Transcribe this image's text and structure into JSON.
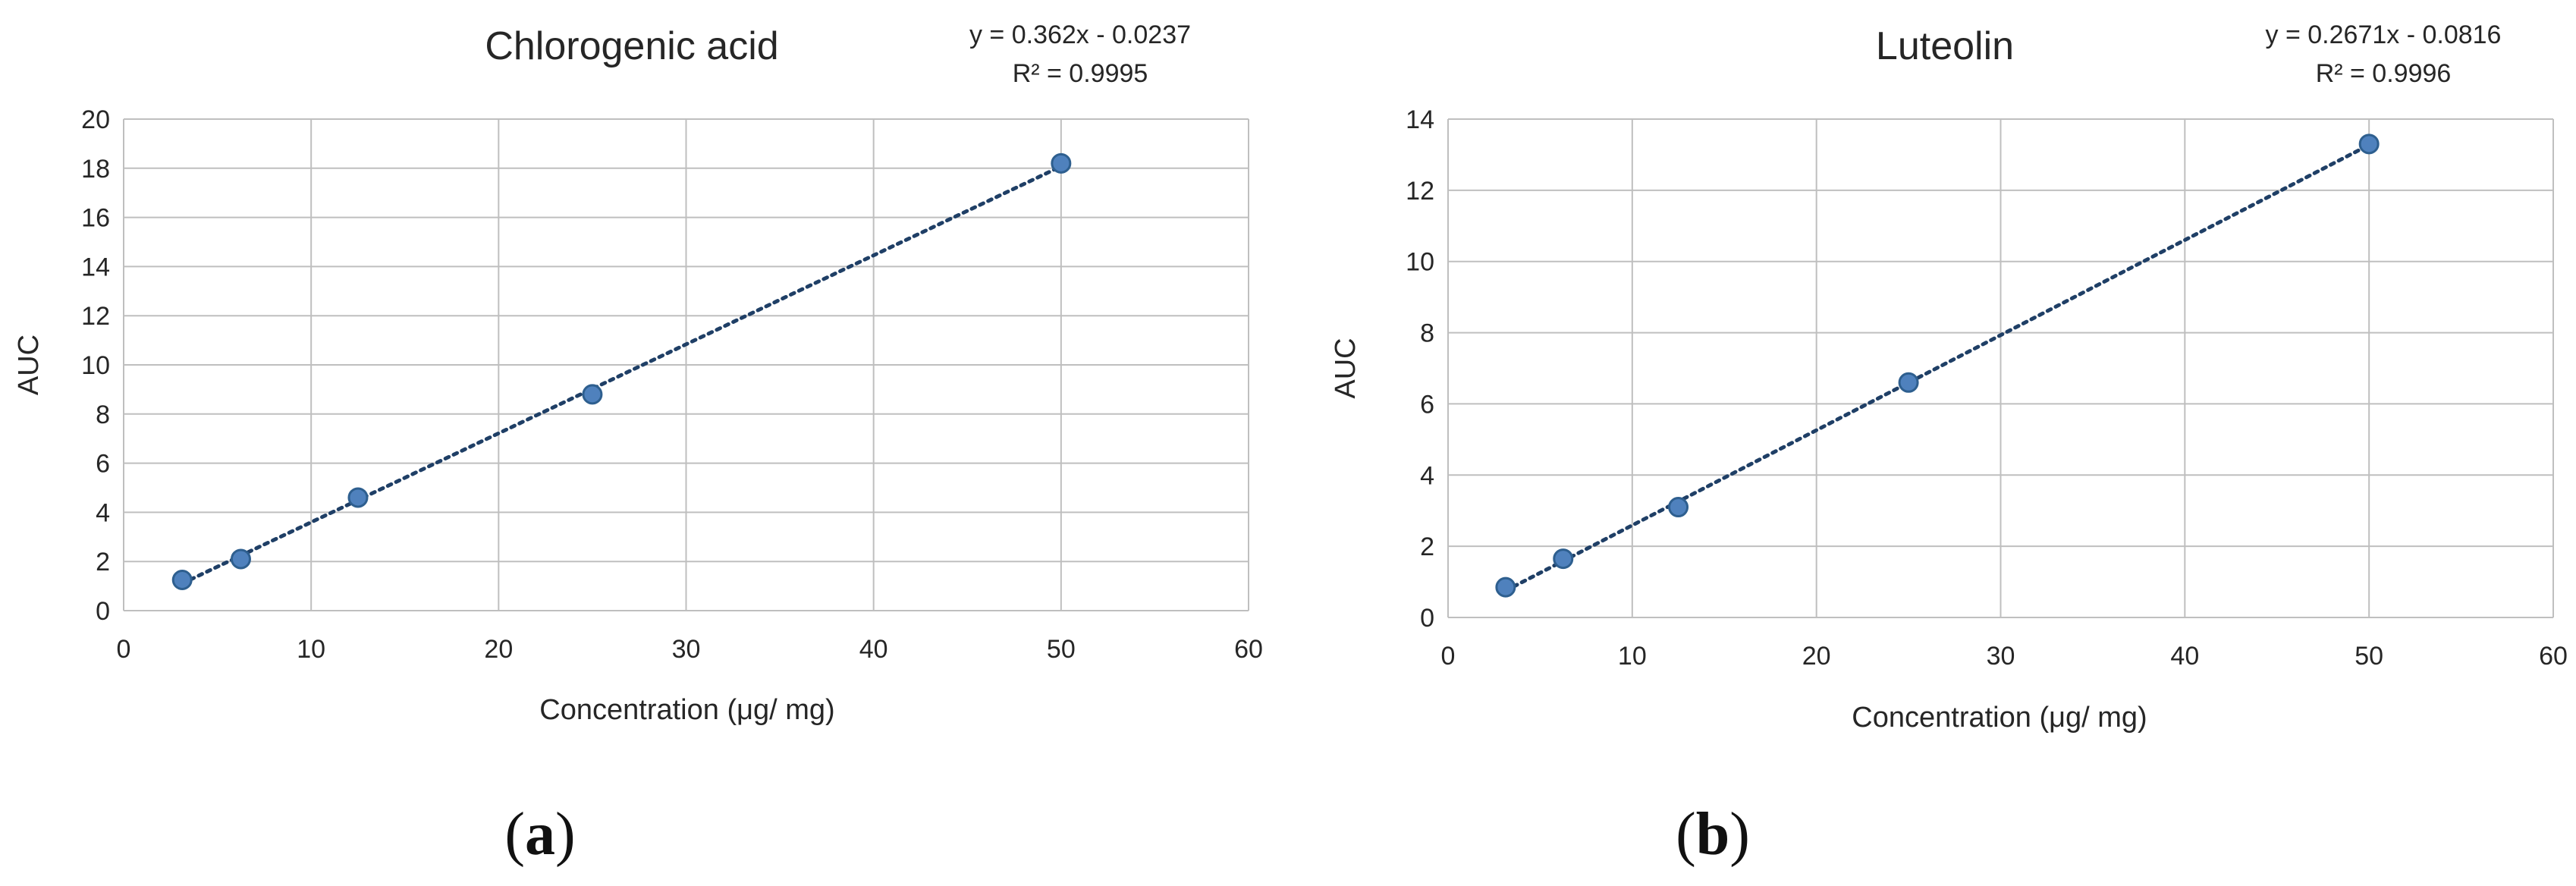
{
  "panels": [
    {
      "label_open": "(",
      "label_letter": "a",
      "label_close": ")"
    },
    {
      "label_open": "(",
      "label_letter": "b",
      "label_close": ")"
    }
  ],
  "colors": {
    "marker_fill": "#4f81bd",
    "marker_edge": "#2e5f8f",
    "trendline": "#1f3f66",
    "grid": "#bfbfbf",
    "text": "#262626"
  },
  "chart_data": [
    {
      "type": "scatter",
      "title": "Chlorogenic acid",
      "xlabel": "Concentration (μg/ mg)",
      "ylabel": "AUC",
      "xlim": [
        0,
        60
      ],
      "ylim": [
        0,
        20
      ],
      "xticks": [
        0,
        10,
        20,
        30,
        40,
        50,
        60
      ],
      "yticks": [
        0,
        2,
        4,
        6,
        8,
        10,
        12,
        14,
        16,
        18,
        20
      ],
      "grid": true,
      "series": [
        {
          "x": [
            3.125,
            6.25,
            12.5,
            25,
            50
          ],
          "y": [
            1.25,
            2.1,
            4.6,
            8.8,
            18.2
          ]
        }
      ],
      "trendline": {
        "type": "linear",
        "slope": 0.362,
        "intercept": -0.0237,
        "x_range": [
          3.125,
          50
        ],
        "style": "dotted"
      },
      "equation": "y = 0.362x - 0.0237",
      "r_squared": "R² = 0.9995"
    },
    {
      "type": "scatter",
      "title": "Luteolin",
      "xlabel": "Concentration (μg/ mg)",
      "ylabel": "AUC",
      "xlim": [
        0,
        60
      ],
      "ylim": [
        0,
        14
      ],
      "xticks": [
        0,
        10,
        20,
        30,
        40,
        50,
        60
      ],
      "yticks": [
        0,
        2,
        4,
        6,
        8,
        10,
        12,
        14
      ],
      "grid": true,
      "series": [
        {
          "x": [
            3.125,
            6.25,
            12.5,
            25,
            50
          ],
          "y": [
            0.85,
            1.65,
            3.1,
            6.6,
            13.3
          ]
        }
      ],
      "trendline": {
        "type": "linear",
        "slope": 0.2671,
        "intercept": -0.0816,
        "x_range": [
          3.125,
          50
        ],
        "style": "dotted"
      },
      "equation": "y = 0.2671x - 0.0816",
      "r_squared": "R² = 0.9996"
    }
  ]
}
